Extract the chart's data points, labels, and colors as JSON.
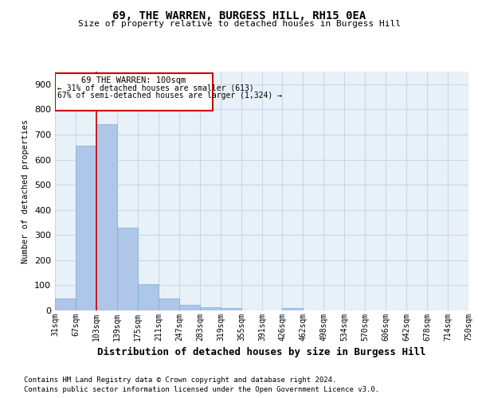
{
  "title_line1": "69, THE WARREN, BURGESS HILL, RH15 0EA",
  "title_line2": "Size of property relative to detached houses in Burgess Hill",
  "xlabel": "Distribution of detached houses by size in Burgess Hill",
  "ylabel": "Number of detached properties",
  "footnote1": "Contains HM Land Registry data © Crown copyright and database right 2024.",
  "footnote2": "Contains public sector information licensed under the Open Government Licence v3.0.",
  "annotation_title": "69 THE WARREN: 100sqm",
  "annotation_line2": "← 31% of detached houses are smaller (613)",
  "annotation_line3": "67% of semi-detached houses are larger (1,324) →",
  "bin_edges": [
    31,
    67,
    103,
    139,
    175,
    211,
    247,
    283,
    319,
    355,
    391,
    426,
    462,
    498,
    534,
    570,
    606,
    642,
    678,
    714,
    750
  ],
  "bar_values": [
    47,
    655,
    740,
    328,
    105,
    47,
    22,
    14,
    9,
    0,
    0,
    8,
    0,
    0,
    0,
    0,
    0,
    0,
    0,
    0
  ],
  "bar_color": "#aec6e8",
  "bar_edge_color": "#7bafd4",
  "vline_color": "#cc0000",
  "vline_x": 103,
  "annotation_box_color": "#cc0000",
  "ylim": [
    0,
    950
  ],
  "yticks": [
    0,
    100,
    200,
    300,
    400,
    500,
    600,
    700,
    800,
    900
  ],
  "grid_color": "#c8d8e8",
  "background_color": "#e8f0f8",
  "fig_background": "#ffffff",
  "title_fontsize": 10,
  "subtitle_fontsize": 8,
  "ylabel_fontsize": 7.5,
  "xlabel_fontsize": 9,
  "footnote_fontsize": 6.5,
  "ytick_fontsize": 8,
  "xtick_fontsize": 7
}
